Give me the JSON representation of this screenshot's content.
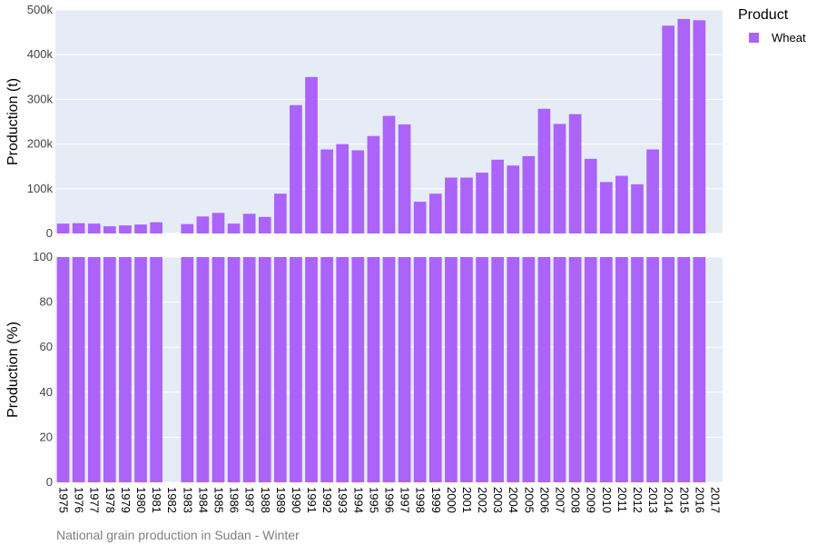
{
  "caption": "National grain production in Sudan - Winter",
  "legend": {
    "title": "Product",
    "items": [
      {
        "label": "Wheat",
        "color": "#ab63fa"
      }
    ]
  },
  "colors": {
    "bar": "#ab63fa",
    "plot_bg": "#e5ecf6",
    "grid": "#ffffff"
  },
  "chart_data": [
    {
      "type": "bar",
      "ylabel": "Production (t)",
      "ylim": [
        0,
        500000
      ],
      "yticks": [
        0,
        100000,
        200000,
        300000,
        400000,
        500000
      ],
      "ytick_labels": [
        "0",
        "100k",
        "200k",
        "300k",
        "400k",
        "500k"
      ],
      "grid": true,
      "categories": [
        "1975",
        "1976",
        "1977",
        "1978",
        "1979",
        "1980",
        "1981",
        "1982",
        "1983",
        "1984",
        "1985",
        "1986",
        "1987",
        "1988",
        "1989",
        "1990",
        "1991",
        "1992",
        "1993",
        "1994",
        "1995",
        "1996",
        "1997",
        "1998",
        "1999",
        "2000",
        "2001",
        "2002",
        "2003",
        "2004",
        "2005",
        "2006",
        "2007",
        "2008",
        "2009",
        "2010",
        "2011",
        "2012",
        "2013",
        "2014",
        "2015",
        "2016",
        "2017"
      ],
      "series": [
        {
          "name": "Wheat",
          "values": [
            22000,
            23000,
            22000,
            16000,
            18000,
            20000,
            25000,
            null,
            21000,
            38000,
            46000,
            22000,
            44000,
            37000,
            89000,
            287000,
            350000,
            188000,
            200000,
            186000,
            218000,
            263000,
            244000,
            71000,
            89000,
            125000,
            125000,
            136000,
            165000,
            152000,
            173000,
            279000,
            245000,
            267000,
            167000,
            115000,
            129000,
            110000,
            188000,
            465000,
            480000,
            477000,
            null
          ]
        }
      ]
    },
    {
      "type": "bar",
      "ylabel": "Production (%)",
      "ylim": [
        0,
        100
      ],
      "yticks": [
        0,
        20,
        40,
        60,
        80,
        100
      ],
      "ytick_labels": [
        "0",
        "20",
        "40",
        "60",
        "80",
        "100"
      ],
      "grid": true,
      "categories": [
        "1975",
        "1976",
        "1977",
        "1978",
        "1979",
        "1980",
        "1981",
        "1982",
        "1983",
        "1984",
        "1985",
        "1986",
        "1987",
        "1988",
        "1989",
        "1990",
        "1991",
        "1992",
        "1993",
        "1994",
        "1995",
        "1996",
        "1997",
        "1998",
        "1999",
        "2000",
        "2001",
        "2002",
        "2003",
        "2004",
        "2005",
        "2006",
        "2007",
        "2008",
        "2009",
        "2010",
        "2011",
        "2012",
        "2013",
        "2014",
        "2015",
        "2016",
        "2017"
      ],
      "series": [
        {
          "name": "Wheat",
          "values": [
            100,
            100,
            100,
            100,
            100,
            100,
            100,
            null,
            100,
            100,
            100,
            100,
            100,
            100,
            100,
            100,
            100,
            100,
            100,
            100,
            100,
            100,
            100,
            100,
            100,
            100,
            100,
            100,
            100,
            100,
            100,
            100,
            100,
            100,
            100,
            100,
            100,
            100,
            100,
            100,
            100,
            100,
            null
          ]
        }
      ]
    }
  ]
}
